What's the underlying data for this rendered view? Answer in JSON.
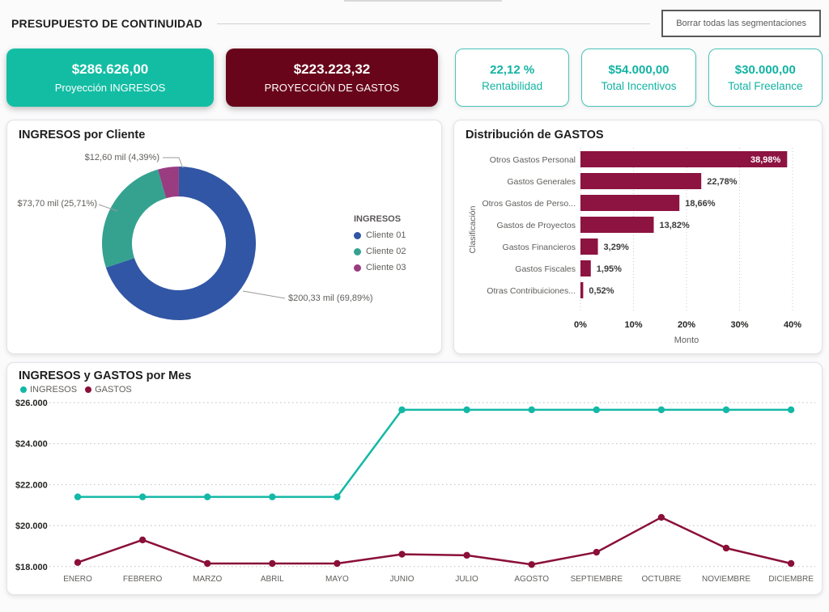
{
  "header": {
    "title": "PRESUPUESTO DE CONTINUIDAD",
    "clear_button": "Borrar todas las segmentaciones"
  },
  "kpis": {
    "ingresos": {
      "value": "$286.626,00",
      "label": "Proyección INGRESOS",
      "bg": "#13bda4"
    },
    "gastos": {
      "value": "$223.223,32",
      "label": "PROYECCIÓN DE GASTOS",
      "bg": "#68051a"
    },
    "small": [
      {
        "value": "22,12 %",
        "label": "Rentabilidad"
      },
      {
        "value": "$54.000,00",
        "label": "Total Incentivos"
      },
      {
        "value": "$30.000,00",
        "label": "Total Freelance"
      }
    ],
    "accent_teal": "#13bda4",
    "accent_maroon": "#68051a"
  },
  "chart_data": [
    {
      "type": "pie",
      "donut": true,
      "title": "INGRESOS por Cliente",
      "legend_title": "INGRESOS",
      "legend_position": "right",
      "slices": [
        {
          "label": "Cliente 01",
          "pct": 69.89,
          "value_label": "$200,33 mil (69,89%)",
          "color": "#3156a5"
        },
        {
          "label": "Cliente 02",
          "pct": 25.71,
          "value_label": "$73,70 mil (25,71%)",
          "color": "#35a290"
        },
        {
          "label": "Cliente 03",
          "pct": 4.39,
          "value_label": "$12,60 mil (4,39%)",
          "color": "#993c80"
        }
      ]
    },
    {
      "type": "bar",
      "orientation": "horizontal",
      "title": "Distribución de GASTOS",
      "categories": [
        "Otros Gastos Personal",
        "Gastos Generales",
        "Otros Gastos de Perso...",
        "Gastos de Proyectos",
        "Gastos Financieros",
        "Gastos Fiscales",
        "Otras Contribuiciones..."
      ],
      "values": [
        38.98,
        22.78,
        18.66,
        13.82,
        3.29,
        1.95,
        0.52
      ],
      "value_labels": [
        "38,98%",
        "22,78%",
        "18,66%",
        "13,82%",
        "3,29%",
        "1,95%",
        "0,52%"
      ],
      "x_ticks": [
        "0%",
        "10%",
        "20%",
        "30%",
        "40%"
      ],
      "x_tick_values": [
        0,
        10,
        20,
        30,
        40
      ],
      "xlim": [
        0,
        43.5
      ],
      "xlabel": "Monto",
      "ylabel": "Clasificación",
      "bar_color": "#8d1340",
      "grid": "dotted-vertical"
    },
    {
      "type": "line",
      "title": "INGRESOS y GASTOS por Mes",
      "categories": [
        "ENERO",
        "FEBRERO",
        "MARZO",
        "ABRIL",
        "MAYO",
        "JUNIO",
        "JULIO",
        "AGOSTO",
        "SEPTIEMBRE",
        "OCTUBRE",
        "NOVIEMBRE",
        "DICIEMBRE"
      ],
      "series": [
        {
          "name": "INGRESOS",
          "color": "#14b8a6",
          "values": [
            21400,
            21400,
            21400,
            21400,
            21400,
            25650,
            25650,
            25650,
            25650,
            25650,
            25650,
            25650
          ]
        },
        {
          "name": "GASTOS",
          "color": "#8a1038",
          "values": [
            18200,
            19300,
            18150,
            18150,
            18150,
            18600,
            18550,
            18100,
            18700,
            20400,
            18900,
            18150
          ]
        }
      ],
      "y_ticks": [
        "$26.000",
        "$24.000",
        "$22.000",
        "$20.000",
        "$18.000"
      ],
      "y_tick_values": [
        26000,
        24000,
        22000,
        20000,
        18000
      ],
      "ylim": [
        17750,
        26350
      ],
      "grid": "dotted-horizontal",
      "legend_position": "top-left"
    }
  ]
}
